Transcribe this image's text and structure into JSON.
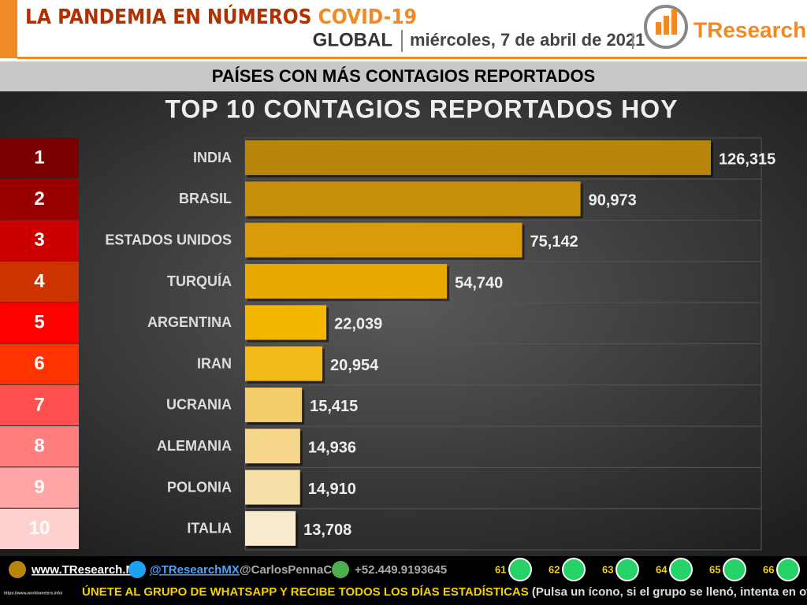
{
  "header": {
    "title": "LA PANDEMIA EN NÚMEROS",
    "highlight": "COVID-19",
    "scope": "GLOBAL",
    "date": "miércoles, 7 de abril de 2021",
    "logo": "TResearch"
  },
  "banner": "PAÍSES CON MÁS CONTAGIOS REPORTADOS",
  "ranks": [
    1,
    2,
    3,
    4,
    5,
    6,
    7,
    8,
    9,
    10
  ],
  "rank_colors": [
    "#7a0000",
    "#990000",
    "#cc0000",
    "#cc3300",
    "#ff0000",
    "#ff3300",
    "#ff5050",
    "#ff7f7f",
    "#ffa5a5",
    "#ffd0d0"
  ],
  "chart_data": {
    "type": "bar",
    "orientation": "horizontal",
    "title": "TOP 10 CONTAGIOS REPORTADOS HOY",
    "categories": [
      "INDIA",
      "BRASIL",
      "ESTADOS UNIDOS",
      "TURQUÍA",
      "ARGENTINA",
      "IRAN",
      "UCRANIA",
      "ALEMANIA",
      "POLONIA",
      "ITALIA"
    ],
    "values": [
      126315,
      90973,
      75142,
      54740,
      22039,
      20954,
      15415,
      14936,
      14910,
      13708
    ],
    "value_labels": [
      "126,315",
      "90,973",
      "75,142",
      "54,740",
      "22,039",
      "20,954",
      "15,415",
      "14,936",
      "14,910",
      "13,708"
    ],
    "colors": [
      "#b8860b",
      "#c8900a",
      "#d99c08",
      "#e8a800",
      "#f2b600",
      "#f2bb1a",
      "#f3cd6a",
      "#f5d68a",
      "#f7e0a8",
      "#f9ead0"
    ],
    "xlim": [
      0,
      140000
    ]
  },
  "footer": {
    "site": "www.TResearch.Mx",
    "twitter": "@TResearchMX",
    "twitter2": "@CarlosPennaC",
    "phone": "+52.449.9193645",
    "groups": [
      61,
      62,
      63,
      64,
      65,
      66
    ],
    "cta": "ÚNETE AL GRUPO DE WHATSAPP Y RECIBE TODOS LOS DÍAS ESTADÍSTICAS",
    "cta_note": "(Pulsa un ícono, si el grupo se llenó, intenta en otro)",
    "source": "https://www.worldometers.info/"
  }
}
